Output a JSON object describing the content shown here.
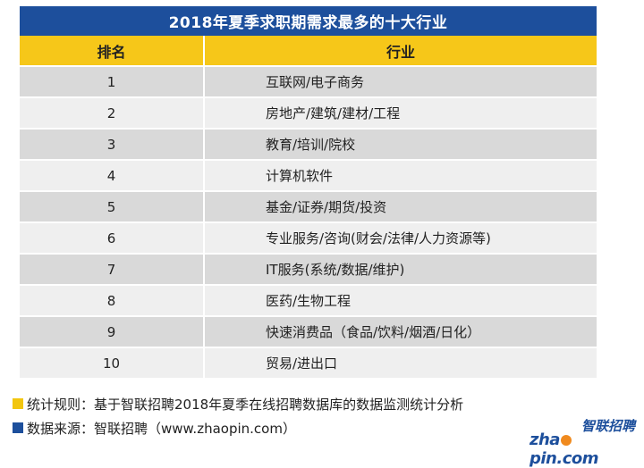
{
  "title": "2018年夏季求职期需求最多的十大行业",
  "headers": {
    "rank": "排名",
    "industry": "行业"
  },
  "rows": [
    {
      "rank": "1",
      "industry": "互联网/电子商务"
    },
    {
      "rank": "2",
      "industry": "房地产/建筑/建材/工程"
    },
    {
      "rank": "3",
      "industry": "教育/培训/院校"
    },
    {
      "rank": "4",
      "industry": "计算机软件"
    },
    {
      "rank": "5",
      "industry": "基金/证券/期货/投资"
    },
    {
      "rank": "6",
      "industry": "专业服务/咨询(财会/法律/人力资源等)"
    },
    {
      "rank": "7",
      "industry": "IT服务(系统/数据/维护)"
    },
    {
      "rank": "8",
      "industry": "医药/生物工程"
    },
    {
      "rank": "9",
      "industry": "快速消费品（食品/饮料/烟酒/日化）"
    },
    {
      "rank": "10",
      "industry": "贸易/进出口"
    }
  ],
  "notes": {
    "rule": "统计规则：基于智联招聘2018年夏季在线招聘数据库的数据监测统计分析",
    "source": "数据来源：智联招聘（www.zhaopin.com）"
  },
  "logo": {
    "cn": "智联招聘",
    "en_left": "zha",
    "en_right": "pin.com"
  },
  "colors": {
    "title_bg": "#1d4f9c",
    "header_bg": "#f6c719",
    "row_dark": "#d9d9d9",
    "row_light": "#efefef",
    "logo_dot": "#f08a1e"
  }
}
